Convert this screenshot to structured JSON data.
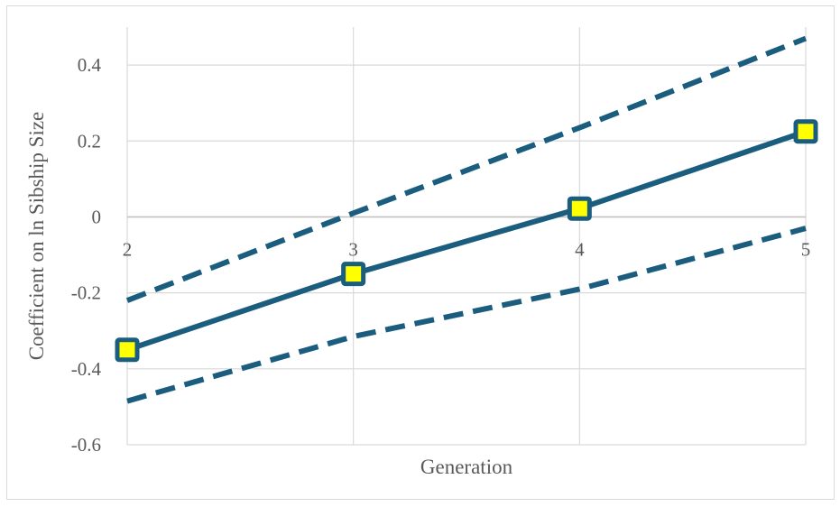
{
  "chart_data": {
    "type": "line",
    "xlabel": "Generation",
    "ylabel": "Coefficient on ln Sibship Size",
    "categories": [
      "2",
      "3",
      "4",
      "5"
    ],
    "ylim": [
      -0.6,
      0.5
    ],
    "yticks": [
      "0.4",
      "0.2",
      "0",
      "-0.2",
      "-0.4",
      "-0.6"
    ],
    "ytick_values": [
      0.4,
      0.2,
      0,
      -0.2,
      -0.4,
      -0.6
    ],
    "grid": true,
    "legend": "none",
    "series": [
      {
        "values": [
          -0.22,
          0.01,
          0.235,
          0.47
        ],
        "style": "dashed"
      },
      {
        "values": [
          -0.35,
          -0.15,
          0.022,
          0.225
        ],
        "style": "solid",
        "markers": "square"
      },
      {
        "values": [
          -0.485,
          -0.315,
          -0.19,
          -0.03
        ],
        "style": "dashed"
      }
    ],
    "colors": {
      "line": "#1b5d7e",
      "marker_fill": "#ffff00",
      "grid": "#d9d9d9",
      "axis": "#bfbfbf",
      "text": "#595959"
    }
  }
}
